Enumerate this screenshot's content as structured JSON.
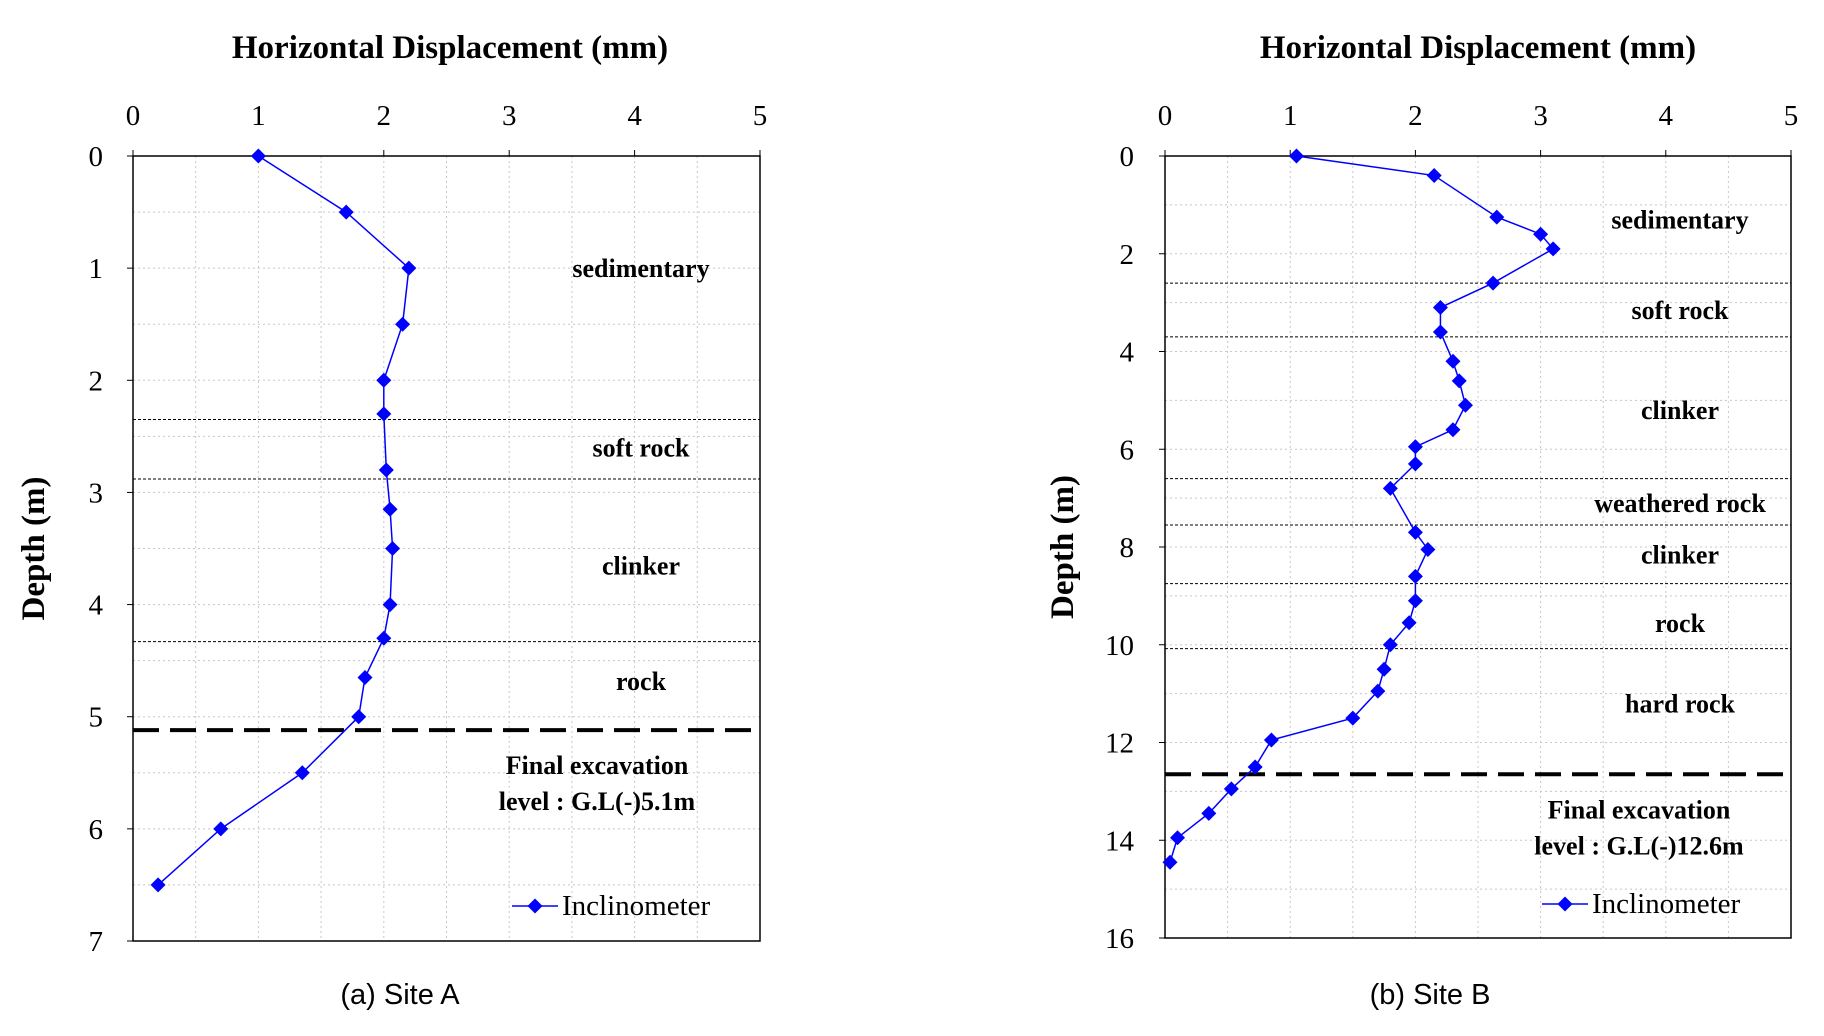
{
  "chart_data": [
    {
      "type": "line",
      "xlabel": "Horizontal Displacement (mm)",
      "ylabel": "Depth (m)",
      "xlim": [
        0,
        5
      ],
      "ylim": [
        0,
        7
      ],
      "y_inverted": true,
      "x_axis_position": "top",
      "x_ticks": [
        "0",
        "1",
        "2",
        "3",
        "4",
        "5"
      ],
      "y_ticks": [
        "0",
        "1",
        "2",
        "3",
        "4",
        "5",
        "6",
        "7"
      ],
      "grid": true,
      "legend_position": "bottom-right",
      "series": [
        {
          "name": "Inclinometer",
          "color": "#0000ff",
          "marker": "diamond",
          "points": [
            {
              "x": 1.0,
              "y": 0.0
            },
            {
              "x": 1.7,
              "y": 0.5
            },
            {
              "x": 2.2,
              "y": 1.0
            },
            {
              "x": 2.15,
              "y": 1.5
            },
            {
              "x": 2.0,
              "y": 2.0
            },
            {
              "x": 2.0,
              "y": 2.3
            },
            {
              "x": 2.02,
              "y": 2.8
            },
            {
              "x": 2.05,
              "y": 3.15
            },
            {
              "x": 2.07,
              "y": 3.5
            },
            {
              "x": 2.05,
              "y": 4.0
            },
            {
              "x": 2.0,
              "y": 4.3
            },
            {
              "x": 1.85,
              "y": 4.65
            },
            {
              "x": 1.8,
              "y": 5.0
            },
            {
              "x": 1.35,
              "y": 5.5
            },
            {
              "x": 0.7,
              "y": 6.0
            },
            {
              "x": 0.2,
              "y": 6.5
            }
          ]
        }
      ],
      "layer_boundaries": [
        2.35,
        2.88,
        4.33
      ],
      "layers": [
        {
          "label": "sedimentary",
          "depth": 1.0
        },
        {
          "label": "soft rock",
          "depth": 2.6
        },
        {
          "label": "clinker",
          "depth": 3.65
        },
        {
          "label": "rock",
          "depth": 4.68
        }
      ],
      "excavation_level": 5.12,
      "annotation": [
        "Final excavation",
        "level : G.L(-)5.1m"
      ],
      "caption": "(a)  Site  A"
    },
    {
      "type": "line",
      "xlabel": "Horizontal Displacement (mm)",
      "ylabel": "Depth (m)",
      "xlim": [
        0,
        5
      ],
      "ylim": [
        0,
        16
      ],
      "y_inverted": true,
      "x_axis_position": "top",
      "x_ticks": [
        "0",
        "1",
        "2",
        "3",
        "4",
        "5"
      ],
      "y_ticks": [
        "0",
        "2",
        "4",
        "6",
        "8",
        "10",
        "12",
        "14",
        "16"
      ],
      "grid": true,
      "legend_position": "bottom-right",
      "series": [
        {
          "name": "Inclinometer",
          "color": "#0000ff",
          "marker": "diamond",
          "points": [
            {
              "x": 1.05,
              "y": 0.0
            },
            {
              "x": 2.15,
              "y": 0.4
            },
            {
              "x": 2.65,
              "y": 1.25
            },
            {
              "x": 3.0,
              "y": 1.6
            },
            {
              "x": 3.1,
              "y": 1.9
            },
            {
              "x": 2.62,
              "y": 2.6
            },
            {
              "x": 2.2,
              "y": 3.1
            },
            {
              "x": 2.2,
              "y": 3.6
            },
            {
              "x": 2.3,
              "y": 4.2
            },
            {
              "x": 2.35,
              "y": 4.6
            },
            {
              "x": 2.4,
              "y": 5.1
            },
            {
              "x": 2.3,
              "y": 5.6
            },
            {
              "x": 2.0,
              "y": 5.95
            },
            {
              "x": 2.0,
              "y": 6.3
            },
            {
              "x": 1.8,
              "y": 6.8
            },
            {
              "x": 2.0,
              "y": 7.7
            },
            {
              "x": 2.1,
              "y": 8.05
            },
            {
              "x": 2.0,
              "y": 8.6
            },
            {
              "x": 2.0,
              "y": 9.1
            },
            {
              "x": 1.95,
              "y": 9.55
            },
            {
              "x": 1.8,
              "y": 10.0
            },
            {
              "x": 1.75,
              "y": 10.5
            },
            {
              "x": 1.7,
              "y": 10.95
            },
            {
              "x": 1.5,
              "y": 11.5
            },
            {
              "x": 0.85,
              "y": 11.95
            },
            {
              "x": 0.72,
              "y": 12.5
            },
            {
              "x": 0.53,
              "y": 12.95
            },
            {
              "x": 0.35,
              "y": 13.45
            },
            {
              "x": 0.1,
              "y": 13.95
            },
            {
              "x": 0.04,
              "y": 14.45
            }
          ]
        }
      ],
      "layer_boundaries": [
        2.6,
        3.7,
        6.6,
        7.55,
        8.75,
        10.08
      ],
      "layers": [
        {
          "label": "sedimentary",
          "depth": 1.3
        },
        {
          "label": "soft rock",
          "depth": 3.15
        },
        {
          "label": "clinker",
          "depth": 5.2
        },
        {
          "label": "weathered rock",
          "depth": 7.1
        },
        {
          "label": "clinker",
          "depth": 8.15
        },
        {
          "label": "rock",
          "depth": 9.55
        },
        {
          "label": "hard rock",
          "depth": 11.2
        }
      ],
      "excavation_level": 12.65,
      "annotation": [
        "Final excavation",
        "level : G.L(-)12.6m"
      ],
      "caption": "(b)  Site  B"
    }
  ]
}
